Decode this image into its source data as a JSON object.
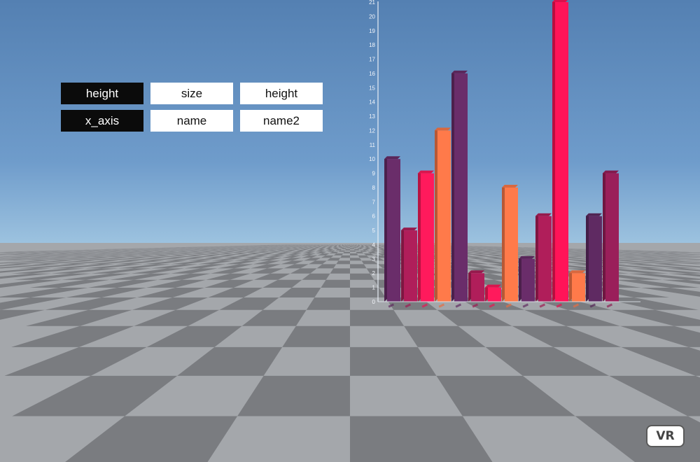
{
  "controls": {
    "row1": {
      "label": "height",
      "option_a": "size",
      "option_b": "height"
    },
    "row2": {
      "label": "x_axis",
      "option_a": "name",
      "option_b": "name2"
    }
  },
  "vr_button": {
    "label": "VR"
  },
  "colors": {
    "sky_top": "#5480b2",
    "sky_horizon": "#9cc2df",
    "floor_dark": "#7a7c80",
    "floor_light": "#a4a7ab",
    "bar_palette": [
      "#6a2d6a",
      "#b01e5a",
      "#ff1a5c",
      "#ff7a4a",
      "#ff1458",
      "#9a1f5a",
      "#5f2a62"
    ]
  },
  "chart_data": {
    "type": "bar",
    "y_ticks": [
      "0",
      "1",
      "2",
      "3",
      "4",
      "5",
      "6",
      "7",
      "8",
      "9",
      "10",
      "11",
      "12",
      "13",
      "14",
      "15",
      "16",
      "17",
      "18",
      "19",
      "20",
      "21"
    ],
    "ylim": [
      0,
      21
    ],
    "bars": [
      {
        "value": 10,
        "color": "#6a2d6a"
      },
      {
        "value": 5,
        "color": "#b01e5a"
      },
      {
        "value": 9,
        "color": "#ff1a5c"
      },
      {
        "value": 12,
        "color": "#ff7a4a"
      },
      {
        "value": 16,
        "color": "#6a2d6a"
      },
      {
        "value": 2,
        "color": "#b01e5a"
      },
      {
        "value": 1,
        "color": "#ff1a5c"
      },
      {
        "value": 8,
        "color": "#ff7a4a"
      },
      {
        "value": 3,
        "color": "#6a2d6a"
      },
      {
        "value": 6,
        "color": "#b01e5a"
      },
      {
        "value": 21,
        "color": "#ff1458"
      },
      {
        "value": 2,
        "color": "#ff7a4a"
      },
      {
        "value": 6,
        "color": "#5f2a62"
      },
      {
        "value": 9,
        "color": "#9a1f5a"
      }
    ]
  }
}
